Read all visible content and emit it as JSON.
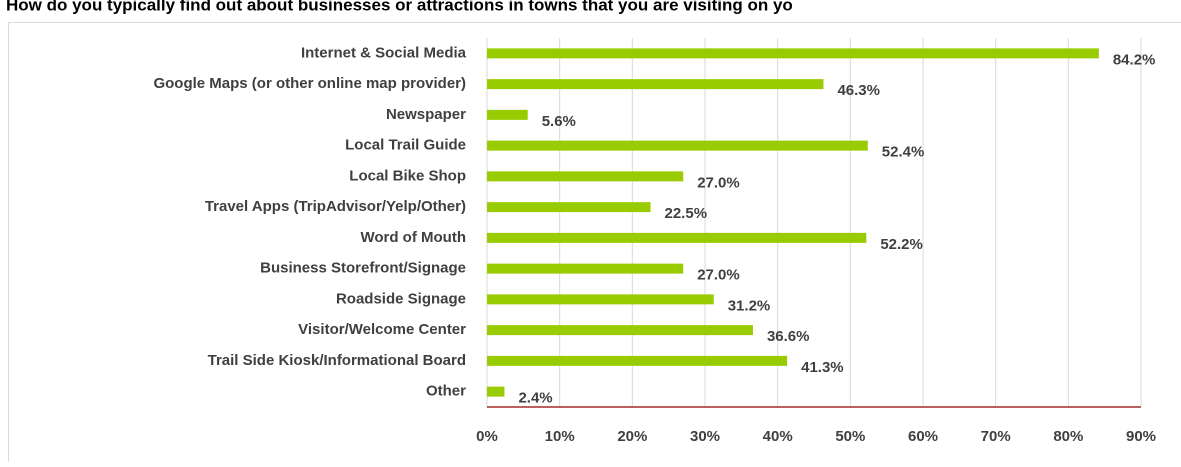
{
  "chart_data": {
    "type": "bar",
    "orientation": "horizontal",
    "title": "How do you typically find out about businesses or attractions in towns that you are visiting on yo",
    "categories": [
      "Internet & Social Media",
      "Google Maps (or other online map provider)",
      "Newspaper",
      "Local Trail Guide",
      "Local Bike Shop",
      "Travel Apps (TripAdvisor/Yelp/Other)",
      "Word of Mouth",
      "Business Storefront/Signage",
      "Roadside Signage",
      "Visitor/Welcome Center",
      "Trail Side Kiosk/Informational Board",
      "Other"
    ],
    "values": [
      84.2,
      46.3,
      5.6,
      52.4,
      27.0,
      22.5,
      52.2,
      27.0,
      31.2,
      36.6,
      41.3,
      2.4
    ],
    "value_labels": [
      "84.2%",
      "46.3%",
      "5.6%",
      "52.4%",
      "27.0%",
      "22.5%",
      "52.2%",
      "27.0%",
      "31.2%",
      "36.6%",
      "41.3%",
      "2.4%"
    ],
    "color": "#99cc00",
    "xlim": [
      0,
      90
    ],
    "xticks": [
      {
        "value": 0,
        "label": "0%"
      },
      {
        "value": 10,
        "label": "10%"
      },
      {
        "value": 20,
        "label": "20%"
      },
      {
        "value": 30,
        "label": "30%"
      },
      {
        "value": 40,
        "label": "40%"
      },
      {
        "value": 50,
        "label": "50%"
      },
      {
        "value": 60,
        "label": "60%"
      },
      {
        "value": 70,
        "label": "70%"
      },
      {
        "value": 80,
        "label": "80%"
      },
      {
        "value": 90,
        "label": "90%"
      }
    ],
    "grid": true
  }
}
